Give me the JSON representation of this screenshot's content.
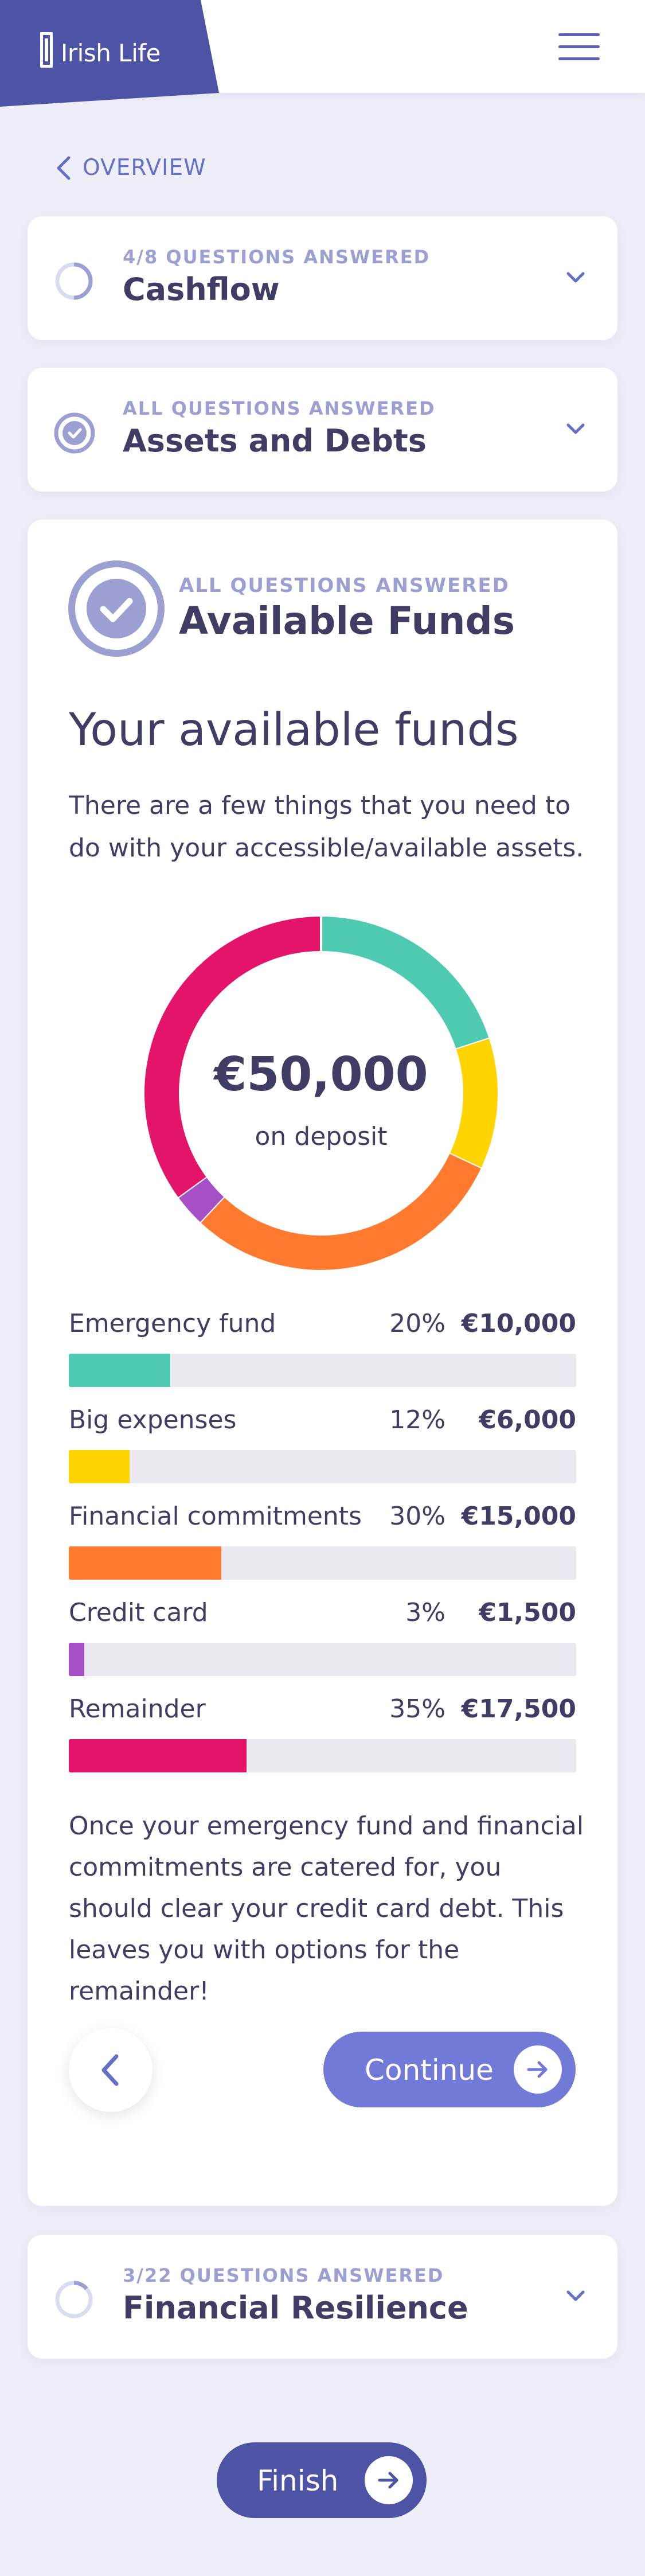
{
  "header": {
    "logo_text": "Irish Life",
    "brand_color": "#4d54a6",
    "menu_icon": "hamburger-menu-icon"
  },
  "nav": {
    "back_label": "OVERVIEW"
  },
  "sections": {
    "cashflow": {
      "kicker": "4/8 QUESTIONS ANSWERED",
      "title": "Cashflow",
      "answered": 4,
      "total": 8
    },
    "assets": {
      "kicker": "ALL QUESTIONS ANSWERED",
      "title": "Assets and Debts"
    },
    "available": {
      "kicker": "ALL QUESTIONS ANSWERED",
      "title": "Available Funds",
      "heading": "Your available funds",
      "intro": "There are a few things that you need to do with your accessible/available assets.",
      "note": "Once your emergency fund and financial commitments are catered for, you should clear your credit card debt. This leaves you with options for the remainder!",
      "continue_label": "Continue"
    },
    "resilience": {
      "kicker": "3/22 QUESTIONS ANSWERED",
      "title": "Financial Resilience",
      "answered": 3,
      "total": 22
    }
  },
  "chart_data": {
    "type": "pie",
    "center_value": "€50,000",
    "center_label": "on deposit",
    "categories": [
      "Emergency fund",
      "Big expenses",
      "Financial commitments",
      "Credit card",
      "Remainder"
    ],
    "percents": [
      20,
      12,
      30,
      3,
      35
    ],
    "percent_labels": [
      "20%",
      "12%",
      "30%",
      "3%",
      "35%"
    ],
    "amounts": [
      10000,
      6000,
      15000,
      1500,
      17500
    ],
    "amount_labels": [
      "€10,000",
      "€6,000",
      "€15,000",
      "€1,500",
      "€17,500"
    ],
    "colors": [
      "#4ecab0",
      "#ffd400",
      "#ff7a2f",
      "#a64fc6",
      "#e5146b"
    ]
  },
  "footer": {
    "finish_label": "Finish"
  }
}
